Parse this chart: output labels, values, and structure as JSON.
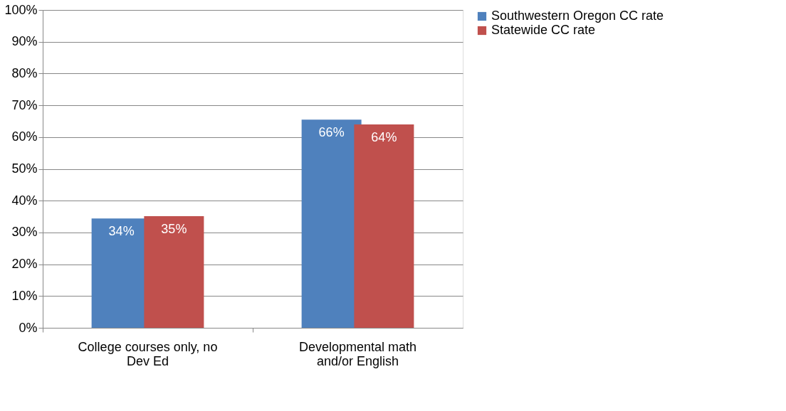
{
  "chart_data": {
    "type": "bar",
    "categories": [
      "College courses only, no Dev Ed",
      "Developmental math and/or English"
    ],
    "series": [
      {
        "name": "Southwestern Oregon CC rate",
        "color": "#4f81bd",
        "values": [
          34.4,
          65.5
        ],
        "value_labels": [
          "34%",
          "66%"
        ]
      },
      {
        "name": "Statewide CC rate",
        "color": "#c0504d",
        "values": [
          35.1,
          64.0
        ],
        "value_labels": [
          "35%",
          "64%"
        ]
      }
    ],
    "ylim": [
      0,
      100
    ],
    "yticks": [
      {
        "value": 0,
        "label": "0%"
      },
      {
        "value": 10,
        "label": "10%"
      },
      {
        "value": 20,
        "label": "20%"
      },
      {
        "value": 30,
        "label": "30%"
      },
      {
        "value": 40,
        "label": "40%"
      },
      {
        "value": 50,
        "label": "50%"
      },
      {
        "value": 60,
        "label": "60%"
      },
      {
        "value": 70,
        "label": "70%"
      },
      {
        "value": 80,
        "label": "80%"
      },
      {
        "value": 90,
        "label": "90%"
      },
      {
        "value": 100,
        "label": "100%"
      }
    ],
    "grid": "y",
    "legend": "right"
  }
}
